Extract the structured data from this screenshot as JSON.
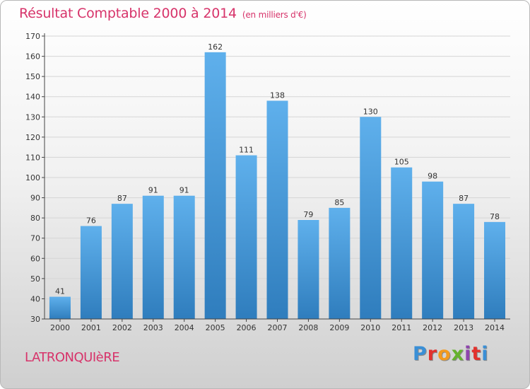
{
  "header": {
    "title": "Résultat Comptable 2000 à 2014",
    "subtitle": "(en milliers d'€)"
  },
  "footer": {
    "commune": "LATRONQUIèRE",
    "brand": "Proxiti"
  },
  "colors": {
    "title": "#d7336a",
    "bar_light": "#5fb0ec",
    "bar_dark": "#2f7dbd",
    "grid": "#d5d5d5",
    "axis": "#444444",
    "brand": [
      "#3a8fd6",
      "#e2322d",
      "#f39a1d",
      "#65b22e",
      "#8e44ad",
      "#e2322d",
      "#3a8fd6"
    ]
  },
  "chart_data": {
    "type": "bar",
    "title": "Résultat Comptable 2000 à 2014",
    "subtitle": "(en milliers d'€)",
    "xlabel": "",
    "ylabel": "",
    "ylim": [
      30,
      170
    ],
    "yticks": [
      30,
      40,
      50,
      60,
      70,
      80,
      90,
      100,
      110,
      120,
      130,
      140,
      150,
      160,
      170
    ],
    "grid": true,
    "categories": [
      "2000",
      "2001",
      "2002",
      "2003",
      "2004",
      "2005",
      "2006",
      "2007",
      "2008",
      "2009",
      "2010",
      "2011",
      "2012",
      "2013",
      "2014"
    ],
    "values": [
      41,
      76,
      87,
      91,
      91,
      162,
      111,
      138,
      79,
      85,
      130,
      105,
      98,
      87,
      78
    ]
  }
}
